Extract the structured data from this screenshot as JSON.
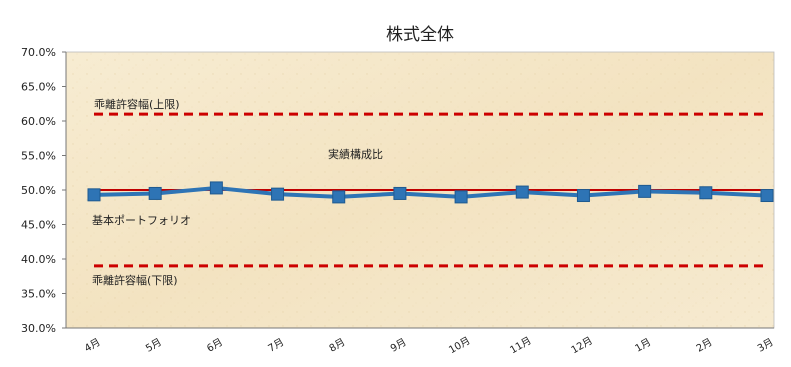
{
  "chart_data": {
    "type": "line",
    "title": "株式全体",
    "xlabel": "",
    "ylabel": "",
    "ylim": [
      30,
      70
    ],
    "y_ticks": [
      30,
      35,
      40,
      45,
      50,
      55,
      60,
      65,
      70
    ],
    "y_tick_labels": [
      "30.0%",
      "35.0%",
      "40.0%",
      "45.0%",
      "50.0%",
      "55.0%",
      "60.0%",
      "65.0%",
      "70.0%"
    ],
    "categories": [
      "4月",
      "5月",
      "6月",
      "7月",
      "8月",
      "9月",
      "10月",
      "11月",
      "12月",
      "1月",
      "2月",
      "3月"
    ],
    "series": [
      {
        "name": "実績構成比",
        "color": "#2e74b5",
        "values": [
          49.3,
          49.5,
          50.3,
          49.4,
          49.0,
          49.5,
          49.0,
          49.7,
          49.2,
          49.8,
          49.6,
          49.2
        ]
      },
      {
        "name": "基本ポートフォリオ",
        "color": "#c00000",
        "values": [
          50,
          50,
          50,
          50,
          50,
          50,
          50,
          50,
          50,
          50,
          50,
          50
        ]
      },
      {
        "name": "乖離許容幅(上限)",
        "color": "#cc0000",
        "style": "dashed",
        "values": [
          61,
          61,
          61,
          61,
          61,
          61,
          61,
          61,
          61,
          61,
          61,
          61
        ]
      },
      {
        "name": "乖離許容幅(下限)",
        "color": "#cc0000",
        "style": "dashed",
        "values": [
          39,
          39,
          39,
          39,
          39,
          39,
          39,
          39,
          39,
          39,
          39,
          39
        ]
      }
    ],
    "annotations": {
      "upper": "乖離許容幅(上限)",
      "actual": "実績構成比",
      "basic": "基本ポートフォリオ",
      "lower": "乖離許容幅(下限)"
    },
    "grid": false,
    "background": "parchment"
  }
}
